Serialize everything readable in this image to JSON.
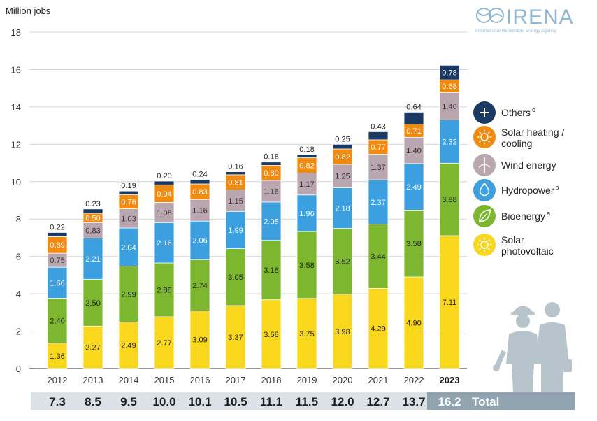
{
  "logo": {
    "name": "IRENA",
    "tagline": "International Renewable Energy Agency"
  },
  "total_label": "Total",
  "chart_data": {
    "type": "bar",
    "stacked": true,
    "ylabel": "Million jobs",
    "ylim": [
      0,
      18
    ],
    "yticks": [
      0,
      2,
      4,
      6,
      8,
      10,
      12,
      14,
      16,
      18
    ],
    "grid": true,
    "legend_position": "right",
    "categories": [
      "2012",
      "2013",
      "2014",
      "2015",
      "2016",
      "2017",
      "2018",
      "2019",
      "2020",
      "2021",
      "2022",
      "2023"
    ],
    "series": [
      {
        "name": "Solar photovoltaic",
        "color": "#f9d71c",
        "label_color": "#222222",
        "values": [
          1.36,
          2.27,
          2.49,
          2.77,
          3.09,
          3.37,
          3.68,
          3.75,
          3.98,
          4.29,
          4.9,
          7.11
        ]
      },
      {
        "name": "Bioenergy",
        "superscript": "a",
        "color": "#7cb72f",
        "label_color": "#222222",
        "values": [
          2.4,
          2.5,
          2.99,
          2.88,
          2.74,
          3.05,
          3.18,
          3.58,
          3.52,
          3.44,
          3.58,
          3.88
        ]
      },
      {
        "name": "Hydropower",
        "superscript": "b",
        "color": "#3b9fe0",
        "label_color": "#ffffff",
        "values": [
          1.66,
          2.21,
          2.04,
          2.16,
          2.06,
          1.99,
          2.05,
          1.96,
          2.18,
          2.37,
          2.49,
          2.32
        ]
      },
      {
        "name": "Wind energy",
        "color": "#b9a6ae",
        "label_color": "#333333",
        "values": [
          0.75,
          0.83,
          1.03,
          1.08,
          1.16,
          1.15,
          1.16,
          1.17,
          1.25,
          1.37,
          1.4,
          1.46
        ]
      },
      {
        "name": "Solar heating / cooling",
        "color": "#f28a0f",
        "label_color": "#ffffff",
        "values": [
          0.89,
          0.5,
          0.76,
          0.94,
          0.83,
          0.81,
          0.8,
          0.82,
          0.82,
          0.77,
          0.71,
          0.68
        ]
      },
      {
        "name": "Others",
        "superscript": "c",
        "color": "#1a3a63",
        "label_color": "#ffffff",
        "values": [
          0.22,
          0.23,
          0.19,
          0.2,
          0.24,
          0.16,
          0.18,
          0.18,
          0.25,
          0.43,
          0.64,
          0.78
        ]
      }
    ],
    "totals": [
      "7.3",
      "8.5",
      "9.5",
      "10.0",
      "10.1",
      "10.5",
      "11.1",
      "11.5",
      "12.0",
      "12.7",
      "13.7",
      "16.2"
    ],
    "highlight_category": "2023"
  }
}
